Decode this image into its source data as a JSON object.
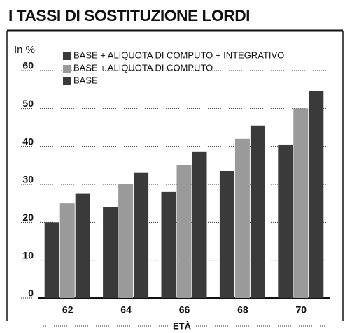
{
  "chart_data": {
    "type": "bar",
    "title": "I TASSI DI SOSTITUZIONE LORDI",
    "y_label": "In %",
    "x_label": "ETÀ",
    "categories": [
      "62",
      "64",
      "66",
      "68",
      "70"
    ],
    "series": [
      {
        "name": "BASE",
        "color": "#3a3a3a",
        "values": [
          20,
          24,
          28,
          33.5,
          40.5
        ]
      },
      {
        "name": "BASE + ALIQUOTA DI COMPUTO",
        "color": "#9a9a9a",
        "values": [
          25,
          30,
          35,
          42,
          50
        ]
      },
      {
        "name": "BASE + ALIQUOTA DI COMPUTO + INTEGRATIVO",
        "color": "#3a3a3a",
        "values": [
          27.5,
          33,
          38.5,
          45.5,
          54.5
        ]
      }
    ],
    "ylim": [
      0,
      60
    ],
    "yticks": [
      0,
      10,
      20,
      30,
      40,
      50,
      60
    ],
    "grid": true
  }
}
